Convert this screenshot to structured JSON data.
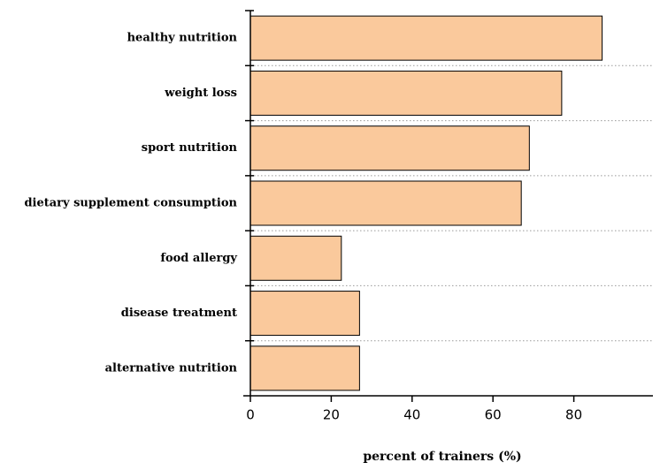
{
  "chart_data": {
    "type": "hbar",
    "x_label": "percent of trainers (%)",
    "categories": [
      "healthy nutrition",
      "weight loss",
      "sport nutrition",
      "dietary supplement consumption",
      "food allergy",
      "disease treatment",
      "alternative nutrition"
    ],
    "values": [
      87,
      77,
      69,
      67,
      22.5,
      27,
      27
    ],
    "color": "#fac99c",
    "xlim": [
      0,
      100
    ],
    "xticks": [
      0,
      20,
      40,
      60,
      80
    ],
    "grid": true
  }
}
